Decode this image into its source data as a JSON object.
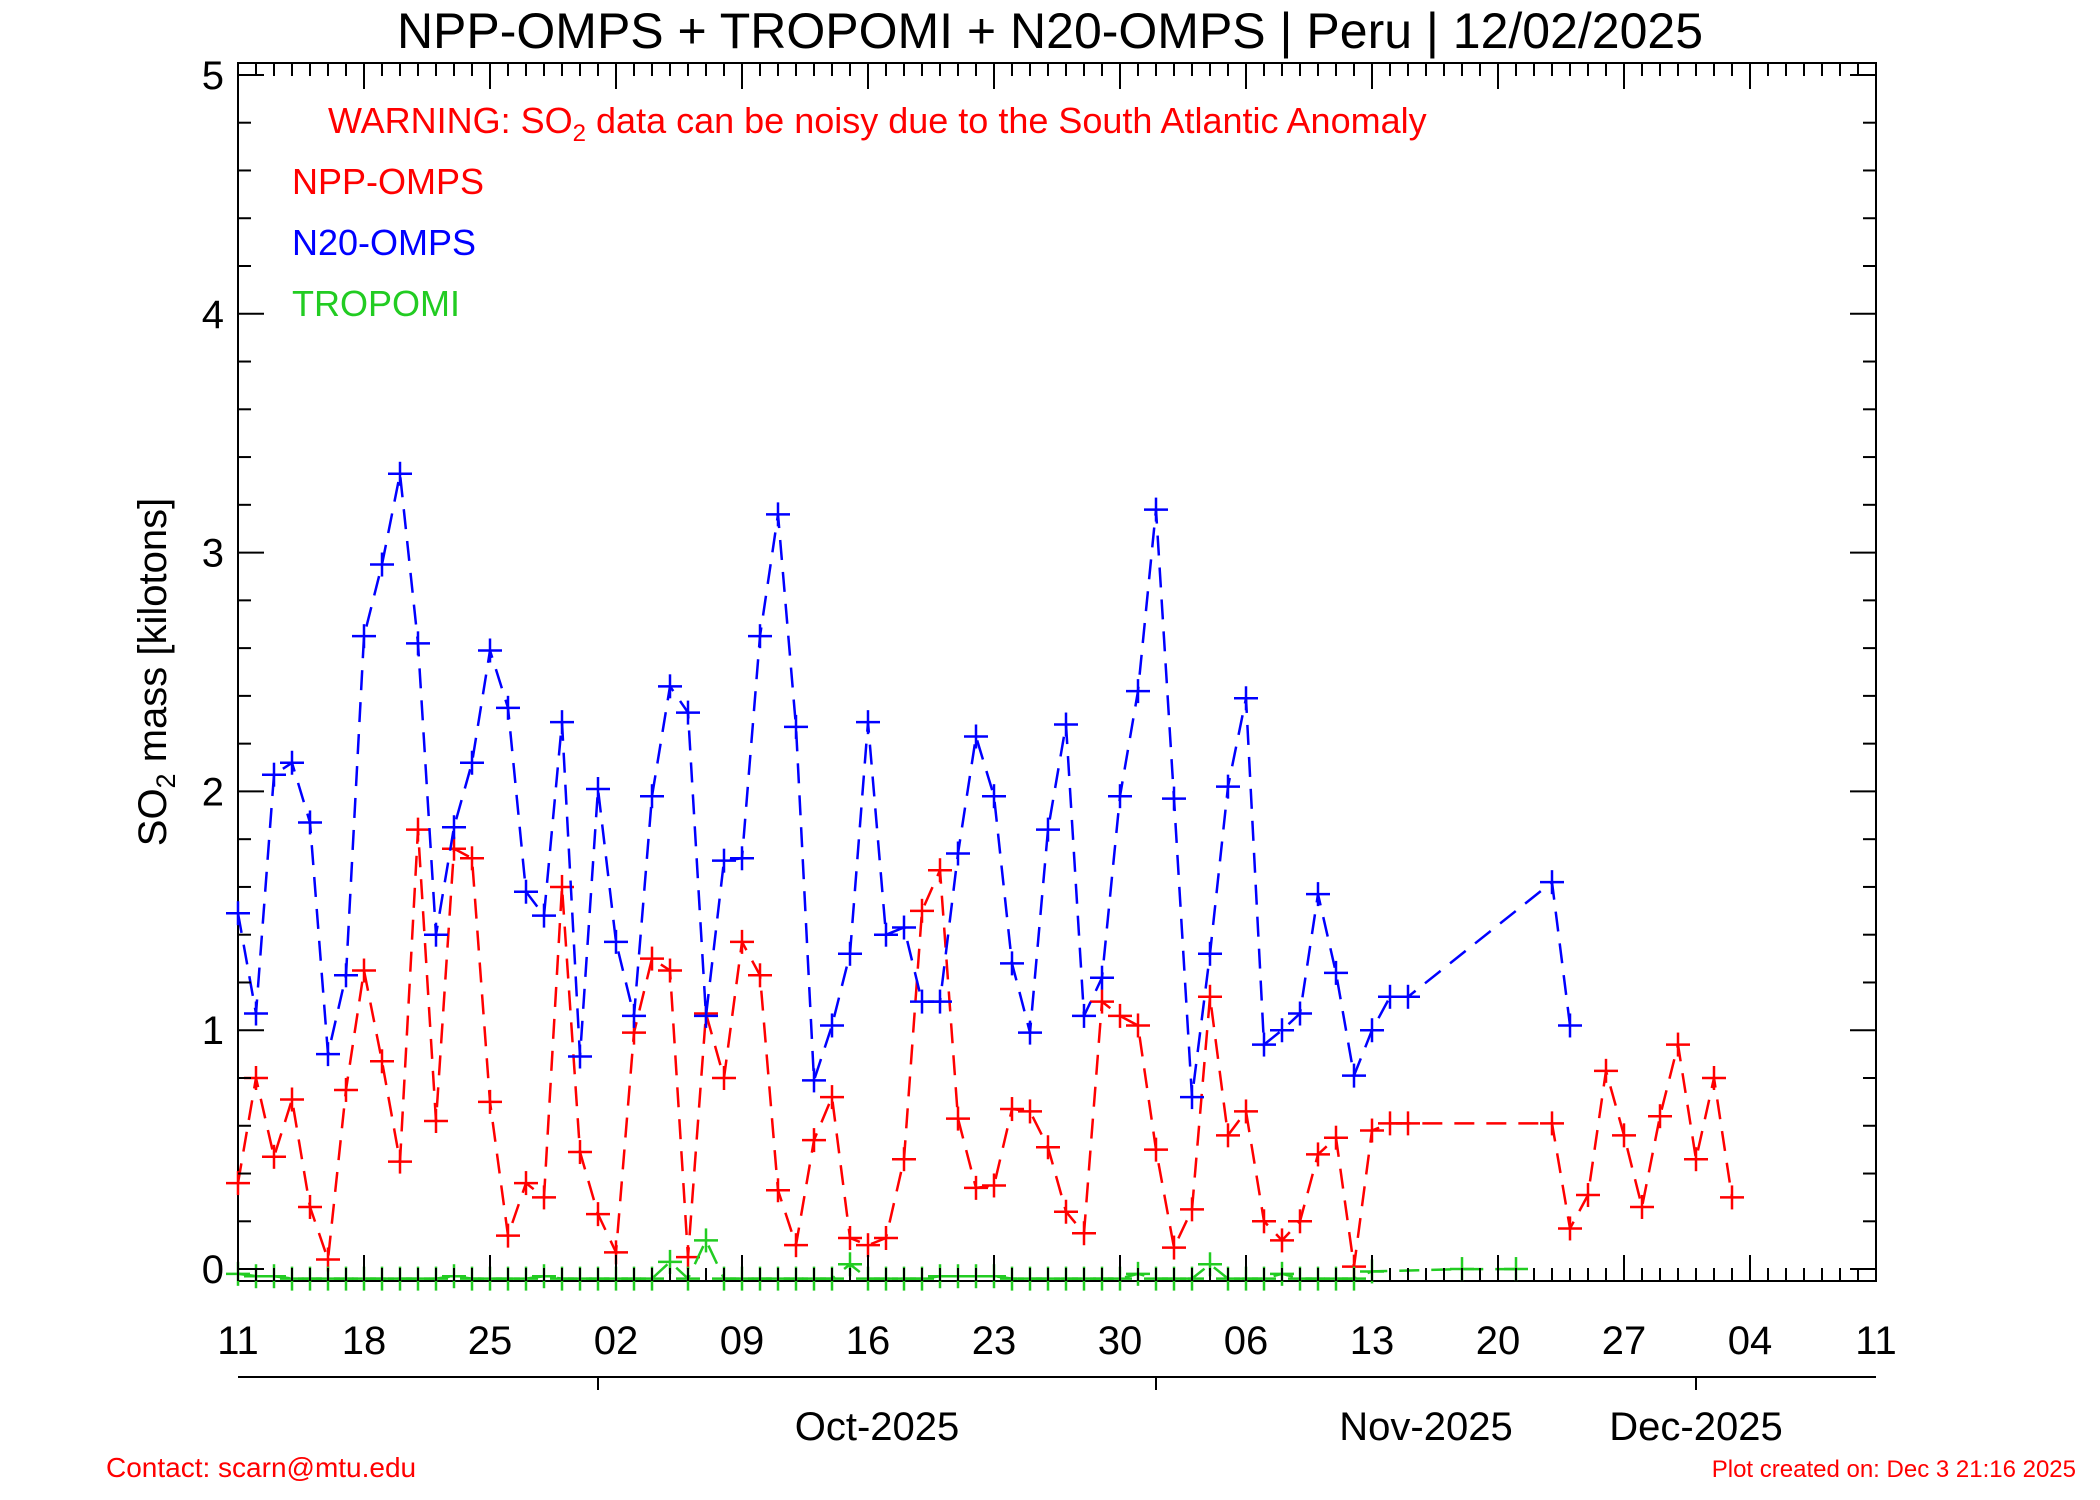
{
  "chart_data": {
    "type": "line",
    "title": "NPP-OMPS + TROPOMI + N20-OMPS | Peru | 12/02/2025",
    "ylabel_main": "SO",
    "ylabel_sub": "2",
    "ylabel_rest": " mass [kilotons]",
    "warning": {
      "prefix": "WARNING: SO",
      "sub": "2",
      "suffix": " data can be noisy due to the South Atlantic Anomaly",
      "color": "#ff0000"
    },
    "xlim": [
      "2025-09-11",
      "2025-12-11"
    ],
    "ylim": [
      -0.05,
      5.05
    ],
    "y_ticks": [
      0,
      1,
      2,
      3,
      4,
      5
    ],
    "y_tick_labels": [
      "0",
      "1",
      "2",
      "3",
      "4",
      "5"
    ],
    "x_ticks": [
      "2025-09-11",
      "2025-09-18",
      "2025-09-25",
      "2025-10-02",
      "2025-10-09",
      "2025-10-16",
      "2025-10-23",
      "2025-10-30",
      "2025-11-06",
      "2025-11-13",
      "2025-11-20",
      "2025-11-27",
      "2025-12-04",
      "2025-12-11"
    ],
    "x_tick_labels": [
      "11",
      "18",
      "25",
      "02",
      "09",
      "16",
      "23",
      "30",
      "06",
      "13",
      "20",
      "27",
      "04",
      "11"
    ],
    "month_ticks": [
      "2025-10-01",
      "2025-11-01",
      "2025-12-01"
    ],
    "month_labels": [
      "Oct-2025",
      "Nov-2025",
      "Dec-2025"
    ],
    "grid": false,
    "legend_position": "top-left",
    "series": [
      {
        "name": "NPP-OMPS",
        "color": "#ff0000",
        "x": [
          "2025-09-11",
          "2025-09-12",
          "2025-09-13",
          "2025-09-14",
          "2025-09-15",
          "2025-09-16",
          "2025-09-17",
          "2025-09-18",
          "2025-09-19",
          "2025-09-20",
          "2025-09-21",
          "2025-09-22",
          "2025-09-23",
          "2025-09-24",
          "2025-09-25",
          "2025-09-26",
          "2025-09-27",
          "2025-09-28",
          "2025-09-29",
          "2025-09-30",
          "2025-10-01",
          "2025-10-02",
          "2025-10-03",
          "2025-10-04",
          "2025-10-05",
          "2025-10-06",
          "2025-10-07",
          "2025-10-08",
          "2025-10-09",
          "2025-10-10",
          "2025-10-11",
          "2025-10-12",
          "2025-10-13",
          "2025-10-14",
          "2025-10-15",
          "2025-10-16",
          "2025-10-17",
          "2025-10-18",
          "2025-10-19",
          "2025-10-20",
          "2025-10-21",
          "2025-10-22",
          "2025-10-23",
          "2025-10-24",
          "2025-10-25",
          "2025-10-26",
          "2025-10-27",
          "2025-10-28",
          "2025-10-29",
          "2025-10-30",
          "2025-10-31",
          "2025-11-01",
          "2025-11-02",
          "2025-11-03",
          "2025-11-04",
          "2025-11-05",
          "2025-11-06",
          "2025-11-07",
          "2025-11-08",
          "2025-11-09",
          "2025-11-10",
          "2025-11-11",
          "2025-11-12",
          "2025-11-13",
          "2025-11-14",
          "2025-11-15",
          "2025-11-23",
          "2025-11-24",
          "2025-11-25",
          "2025-11-26",
          "2025-11-27",
          "2025-11-28",
          "2025-11-29",
          "2025-11-30",
          "2025-12-01",
          "2025-12-02",
          "2025-12-03"
        ],
        "y": [
          0.36,
          0.8,
          0.47,
          0.71,
          0.26,
          0.04,
          0.75,
          1.25,
          0.87,
          0.45,
          1.84,
          0.62,
          1.76,
          1.72,
          0.7,
          0.14,
          0.36,
          0.3,
          1.6,
          0.49,
          0.23,
          0.07,
          0.99,
          1.3,
          1.25,
          0.05,
          1.07,
          0.8,
          1.37,
          1.23,
          0.33,
          0.1,
          0.54,
          0.72,
          0.13,
          0.1,
          0.13,
          0.46,
          1.5,
          1.67,
          0.63,
          0.34,
          0.35,
          0.67,
          0.66,
          0.51,
          0.24,
          0.15,
          1.12,
          1.06,
          1.02,
          0.5,
          0.09,
          0.25,
          1.14,
          0.56,
          0.66,
          0.2,
          0.12,
          0.2,
          0.48,
          0.55,
          0.01,
          0.58,
          0.61,
          0.61,
          0.61,
          0.17,
          0.31,
          0.83,
          0.56,
          0.26,
          0.64,
          0.94,
          0.46,
          0.8,
          0.3
        ]
      },
      {
        "name": "N20-OMPS",
        "color": "#0000ff",
        "x": [
          "2025-09-11",
          "2025-09-12",
          "2025-09-13",
          "2025-09-14",
          "2025-09-15",
          "2025-09-16",
          "2025-09-17",
          "2025-09-18",
          "2025-09-19",
          "2025-09-20",
          "2025-09-21",
          "2025-09-22",
          "2025-09-23",
          "2025-09-24",
          "2025-09-25",
          "2025-09-26",
          "2025-09-27",
          "2025-09-28",
          "2025-09-29",
          "2025-09-30",
          "2025-10-01",
          "2025-10-02",
          "2025-10-03",
          "2025-10-04",
          "2025-10-05",
          "2025-10-06",
          "2025-10-07",
          "2025-10-08",
          "2025-10-09",
          "2025-10-10",
          "2025-10-11",
          "2025-10-12",
          "2025-10-13",
          "2025-10-14",
          "2025-10-15",
          "2025-10-16",
          "2025-10-17",
          "2025-10-18",
          "2025-10-19",
          "2025-10-20",
          "2025-10-21",
          "2025-10-22",
          "2025-10-23",
          "2025-10-24",
          "2025-10-25",
          "2025-10-26",
          "2025-10-27",
          "2025-10-28",
          "2025-10-29",
          "2025-10-30",
          "2025-10-31",
          "2025-11-01",
          "2025-11-02",
          "2025-11-03",
          "2025-11-04",
          "2025-11-05",
          "2025-11-06",
          "2025-11-07",
          "2025-11-08",
          "2025-11-09",
          "2025-11-10",
          "2025-11-11",
          "2025-11-12",
          "2025-11-13",
          "2025-11-14",
          "2025-11-15",
          "2025-11-23",
          "2025-11-24"
        ],
        "y": [
          1.49,
          1.07,
          2.07,
          2.12,
          1.87,
          0.9,
          1.23,
          2.65,
          2.95,
          3.33,
          2.62,
          1.4,
          1.85,
          2.12,
          2.59,
          2.35,
          1.58,
          1.48,
          2.29,
          0.89,
          2.01,
          1.37,
          1.06,
          1.98,
          2.44,
          2.33,
          1.06,
          1.71,
          1.72,
          2.65,
          3.16,
          2.27,
          0.79,
          1.02,
          1.32,
          2.29,
          1.4,
          1.43,
          1.12,
          1.12,
          1.74,
          2.23,
          1.98,
          1.28,
          0.99,
          1.84,
          2.28,
          1.06,
          1.22,
          1.98,
          2.42,
          3.18,
          1.97,
          0.72,
          1.32,
          2.02,
          2.39,
          0.94,
          1.0,
          1.07,
          1.57,
          1.24,
          0.81,
          1.0,
          1.14,
          1.14,
          1.62,
          1.02
        ]
      },
      {
        "name": "TROPOMI",
        "color": "#22cc22",
        "x": [
          "2025-09-11",
          "2025-09-12",
          "2025-09-13",
          "2025-09-14",
          "2025-09-15",
          "2025-09-16",
          "2025-09-17",
          "2025-09-18",
          "2025-09-19",
          "2025-09-20",
          "2025-09-21",
          "2025-09-22",
          "2025-09-23",
          "2025-09-24",
          "2025-09-25",
          "2025-09-26",
          "2025-09-27",
          "2025-09-28",
          "2025-09-29",
          "2025-09-30",
          "2025-10-01",
          "2025-10-02",
          "2025-10-03",
          "2025-10-04",
          "2025-10-05",
          "2025-10-06",
          "2025-10-07",
          "2025-10-08",
          "2025-10-09",
          "2025-10-10",
          "2025-10-11",
          "2025-10-12",
          "2025-10-13",
          "2025-10-14",
          "2025-10-15",
          "2025-10-16",
          "2025-10-17",
          "2025-10-18",
          "2025-10-19",
          "2025-10-20",
          "2025-10-21",
          "2025-10-22",
          "2025-10-23",
          "2025-10-24",
          "2025-10-25",
          "2025-10-26",
          "2025-10-27",
          "2025-10-28",
          "2025-10-29",
          "2025-10-30",
          "2025-10-31",
          "2025-11-01",
          "2025-11-02",
          "2025-11-03",
          "2025-11-04",
          "2025-11-05",
          "2025-11-06",
          "2025-11-07",
          "2025-11-08",
          "2025-11-09",
          "2025-11-10",
          "2025-11-11",
          "2025-11-12",
          "2025-11-13",
          "2025-11-18",
          "2025-11-21"
        ],
        "y": [
          -0.02,
          -0.03,
          -0.03,
          -0.04,
          -0.04,
          -0.04,
          -0.04,
          -0.04,
          -0.04,
          -0.04,
          -0.04,
          -0.04,
          -0.03,
          -0.04,
          -0.04,
          -0.04,
          -0.04,
          -0.03,
          -0.04,
          -0.04,
          -0.04,
          -0.04,
          -0.04,
          -0.04,
          0.03,
          -0.04,
          0.12,
          -0.04,
          -0.04,
          -0.04,
          -0.04,
          -0.04,
          -0.04,
          -0.04,
          0.02,
          -0.04,
          -0.04,
          -0.04,
          -0.04,
          -0.03,
          -0.03,
          -0.03,
          -0.03,
          -0.04,
          -0.04,
          -0.04,
          -0.04,
          -0.04,
          -0.04,
          -0.04,
          -0.02,
          -0.04,
          -0.04,
          -0.04,
          0.02,
          -0.04,
          -0.04,
          -0.04,
          -0.02,
          -0.04,
          -0.04,
          -0.04,
          -0.04,
          -0.01,
          0.0,
          0.0
        ]
      }
    ]
  },
  "footer": {
    "contact": "Contact: scarn@mtu.edu",
    "created": "Plot created on: Dec  3 21:16 2025",
    "color": "#ff0000"
  }
}
